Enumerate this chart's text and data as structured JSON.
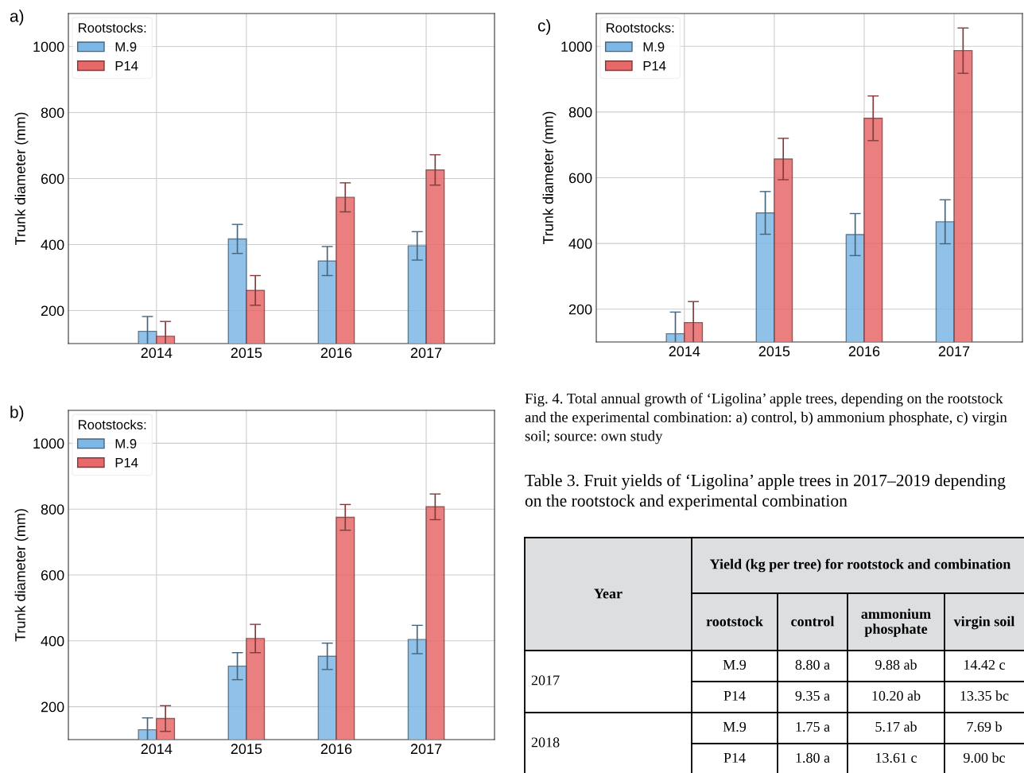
{
  "chart_data": [
    {
      "type": "bar",
      "ylabel": "Trunk diameter (mm)",
      "annotations": [
        "a)"
      ],
      "categories": [
        "2014",
        "2015",
        "2016",
        "2017"
      ],
      "ylim": [
        100,
        1100
      ],
      "yticks": [
        200,
        400,
        600,
        800,
        1000
      ],
      "grid": true,
      "legend": "top left",
      "legend_title": "Rootstocks:",
      "series": [
        {
          "name": "M.9",
          "color": "#7db7e5",
          "values": [
            137,
            417,
            350,
            396
          ],
          "errors": [
            45,
            44,
            44,
            43
          ]
        },
        {
          "name": "P14",
          "color": "#e8696a",
          "values": [
            122,
            261,
            543,
            626
          ],
          "errors": [
            45,
            45,
            44,
            46
          ]
        }
      ]
    },
    {
      "type": "bar",
      "ylabel": "Trunk diameter (mm)",
      "annotations": [
        "b)"
      ],
      "categories": [
        "2014",
        "2015",
        "2016",
        "2017"
      ],
      "ylim": [
        100,
        1100
      ],
      "yticks": [
        200,
        400,
        600,
        800,
        1000
      ],
      "grid": true,
      "legend": "top left",
      "legend_title": "Rootstocks:",
      "series": [
        {
          "name": "M.9",
          "color": "#7db7e5",
          "values": [
            130,
            323,
            353,
            404
          ],
          "errors": [
            36,
            41,
            40,
            43
          ]
        },
        {
          "name": "P14",
          "color": "#e8696a",
          "values": [
            164,
            407,
            775,
            807
          ],
          "errors": [
            39,
            43,
            39,
            39
          ]
        }
      ]
    },
    {
      "type": "bar",
      "ylabel": "Trunk diameter (mm)",
      "annotations": [
        "c)"
      ],
      "categories": [
        "2014",
        "2015",
        "2016",
        "2017"
      ],
      "ylim": [
        100,
        1100
      ],
      "yticks": [
        200,
        400,
        600,
        800,
        1000
      ],
      "grid": true,
      "legend": "top left",
      "legend_title": "Rootstocks:",
      "series": [
        {
          "name": "M.9",
          "color": "#7db7e5",
          "values": [
            125,
            493,
            427,
            466
          ],
          "errors": [
            66,
            65,
            64,
            67
          ]
        },
        {
          "name": "P14",
          "color": "#e8696a",
          "values": [
            159,
            657,
            781,
            987
          ],
          "errors": [
            64,
            63,
            68,
            69
          ]
        }
      ]
    },
    {
      "type": "other",
      "annotations": [
        "Fig. 4. Total annual growth of ‘Ligolina’ apple trees, depending on the rootstock and the experimental combination: a) control, b) ammonium phosphate, c) virgin soil; source: own study",
        "Table 3. Fruit yields of ‘Ligolina’ apple trees in 2017–2019 depending on the rootstock and experimental combination",
        "Year",
        "Yield (kg per tree) for rootstock and combination",
        "rootstock",
        "control",
        "ammonium\nphosphate",
        "virgin soil",
        "2017",
        "M.9",
        "8.80 a",
        "9.88 ab",
        "14.42 c",
        "P14",
        "9.35 a",
        "10.20 ab",
        "13.35 bc",
        "2018",
        "M.9",
        "1.75 a",
        "5.17 ab",
        "7.69 b",
        "P14",
        "1.80 a",
        "13.61 c",
        "9.00 bc"
      ]
    }
  ]
}
